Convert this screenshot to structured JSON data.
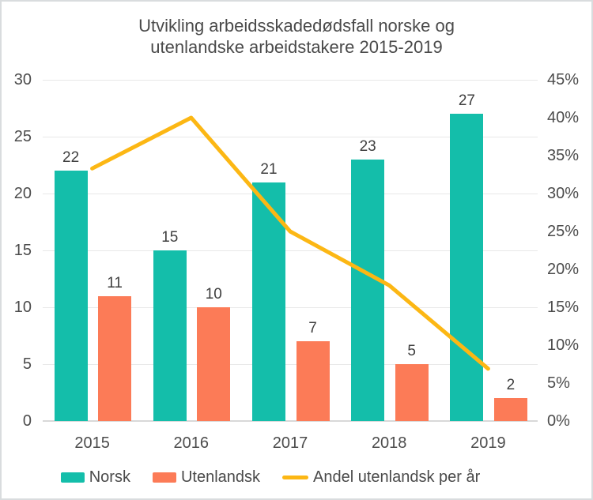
{
  "chart_data": {
    "type": "combo",
    "title": "Utvikling arbeidsskadedødsfall norske og utenlandske arbeidstakere 2015-2019",
    "title_line1": "Utvikling arbeidsskadedødsfall norske og",
    "title_line2": "utenlandske arbeidstakere 2015-2019",
    "categories": [
      "2015",
      "2016",
      "2017",
      "2018",
      "2019"
    ],
    "series": [
      {
        "name": "Norsk",
        "type": "bar",
        "axis": "left",
        "color": "#14BEAA",
        "values": [
          22,
          15,
          21,
          23,
          27
        ]
      },
      {
        "name": "Utenlandsk",
        "type": "bar",
        "axis": "left",
        "color": "#FC7B57",
        "values": [
          11,
          10,
          7,
          5,
          2
        ]
      },
      {
        "name": "Andel utenlandsk per år",
        "type": "line",
        "axis": "right",
        "color": "#FCB714",
        "values_percent": [
          33.3,
          40.0,
          25.0,
          17.9,
          6.9
        ]
      }
    ],
    "left_axis": {
      "min": 0,
      "max": 30,
      "step": 5,
      "tick_labels": [
        "30",
        "25",
        "20",
        "15",
        "10",
        "5",
        "0"
      ]
    },
    "right_axis": {
      "min": 0,
      "max": 45,
      "step": 5,
      "tick_labels": [
        "45%",
        "40%",
        "35%",
        "30%",
        "25%",
        "20%",
        "15%",
        "10%",
        "5%",
        "0%"
      ]
    },
    "grid": "horizontal",
    "legend_position": "bottom",
    "colors": {
      "text": "#4A4A4A",
      "gridline": "#E8E8E8",
      "baseline": "#D8D8D8",
      "background": "#FFFFFF",
      "border": "#D9DCDE"
    }
  }
}
